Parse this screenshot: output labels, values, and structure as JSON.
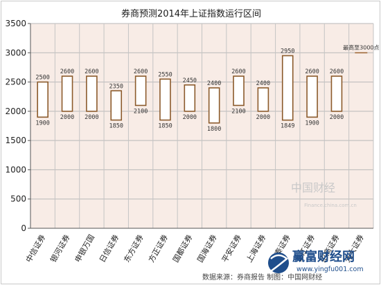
{
  "chart_data": {
    "type": "bar",
    "title": "券商预测2014年上证指数运行区间",
    "categories": [
      "中信证券",
      "银河证券",
      "申银万国",
      "日信证券",
      "东方证券",
      "方正证券",
      "国都证券",
      "国海证券",
      "平安证券",
      "上海证券",
      "华泰证券",
      "长江证券",
      "招商证券",
      "光大证券"
    ],
    "series": [
      {
        "name": "",
        "low": [
          1900,
          2000,
          2000,
          1850,
          2100,
          1850,
          2000,
          1800,
          2100,
          2000,
          1849,
          1900,
          2000,
          null
        ],
        "high": [
          2500,
          2600,
          2600,
          2350,
          2600,
          2550,
          2450,
          2400,
          2600,
          2400,
          2950,
          2600,
          2600,
          null
        ]
      }
    ],
    "ylim": [
      0,
      3500
    ],
    "yticks": [
      0,
      500,
      1000,
      1500,
      2000,
      2500,
      3000,
      3500
    ],
    "annotation": {
      "text": "最高至3000点",
      "value": 3000,
      "category_index": 13
    },
    "grid": true
  },
  "watermark": {
    "logo": "中国财经",
    "url": "Finance.china.com.cn"
  },
  "source_line": "数据来源：券商报告   制图：中国网财经",
  "brand": {
    "name": "赢富财经网",
    "url": "www.yingfu001.com"
  },
  "colors": {
    "plot_bg": "#f8ece6",
    "bar_stroke": "#8b5a2b",
    "bar_fill": "#ffffff",
    "annot_line": "#a06a3a",
    "brand": "#1f4e8c"
  }
}
